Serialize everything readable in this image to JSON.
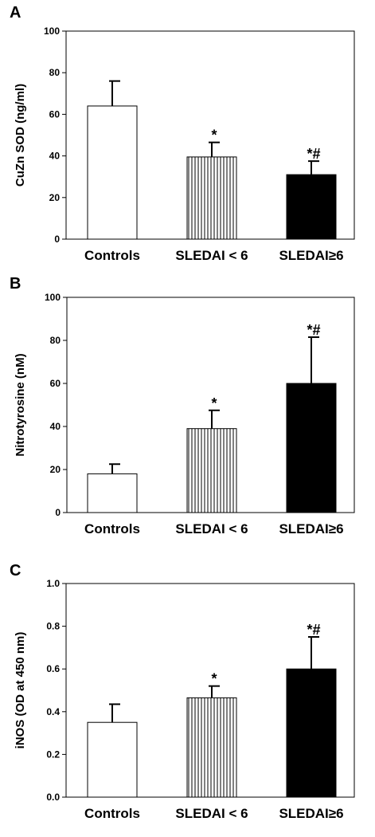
{
  "chart_data": [
    {
      "type": "bar",
      "panel_label": "A",
      "categories": [
        "Controls",
        "SLEDAI < 6",
        "SLEDAI≥6"
      ],
      "values": [
        64,
        39.5,
        31
      ],
      "errors": [
        12,
        7,
        6.5
      ],
      "annotations": [
        "",
        "*",
        "*#"
      ],
      "fills": [
        "white",
        "vertical-stripes",
        "black"
      ],
      "xlabel": "",
      "ylabel": "CuZn SOD (ng/ml)",
      "ylim": [
        0,
        100
      ],
      "yticks": [
        0,
        20,
        40,
        60,
        80,
        100
      ],
      "ytick_labels": [
        "0",
        "20",
        "40",
        "60",
        "80",
        "100"
      ],
      "grid": false
    },
    {
      "type": "bar",
      "panel_label": "B",
      "categories": [
        "Controls",
        "SLEDAI < 6",
        "SLEDAI≥6"
      ],
      "values": [
        18,
        39,
        60
      ],
      "errors": [
        4.5,
        8.5,
        21.5
      ],
      "annotations": [
        "",
        "*",
        "*#"
      ],
      "fills": [
        "white",
        "vertical-stripes",
        "black"
      ],
      "xlabel": "",
      "ylabel": "Nitrotyrosine (nM)",
      "ylim": [
        0,
        100
      ],
      "yticks": [
        0,
        20,
        40,
        60,
        80,
        100
      ],
      "ytick_labels": [
        "0",
        "20",
        "40",
        "60",
        "80",
        "100"
      ],
      "grid": false
    },
    {
      "type": "bar",
      "panel_label": "C",
      "categories": [
        "Controls",
        "SLEDAI < 6",
        "SLEDAI≥6"
      ],
      "values": [
        0.35,
        0.465,
        0.6
      ],
      "errors": [
        0.085,
        0.055,
        0.15
      ],
      "annotations": [
        "",
        "*",
        "*#"
      ],
      "fills": [
        "white",
        "vertical-stripes",
        "black"
      ],
      "xlabel": "",
      "ylabel": "iNOS (OD at 450 nm)",
      "ylim": [
        0,
        1
      ],
      "yticks": [
        0,
        0.2,
        0.4,
        0.6,
        0.8,
        1.0
      ],
      "ytick_labels": [
        "0.0",
        "0.2",
        "0.4",
        "0.6",
        "0.8",
        "1.0"
      ],
      "grid": false
    }
  ]
}
